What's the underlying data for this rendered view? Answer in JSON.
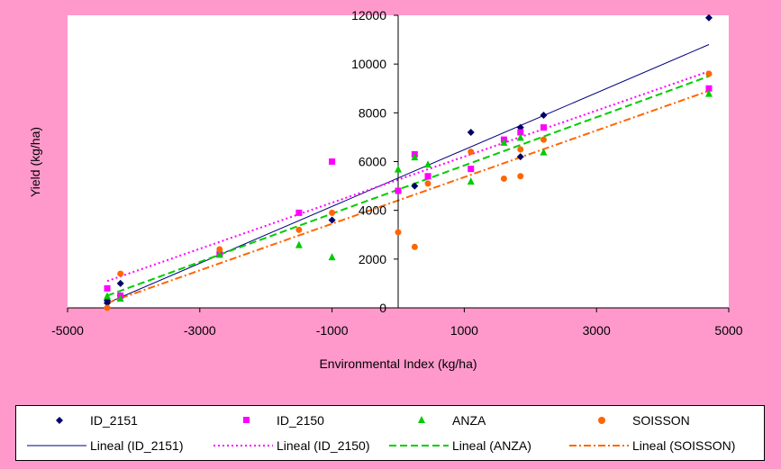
{
  "chart_data": {
    "type": "scatter",
    "title": "",
    "xlabel": "Environmental Index (kg/ha)",
    "ylabel": "Yield (kg/ha)",
    "xlim": [
      -5000,
      5000
    ],
    "ylim": [
      0,
      12000
    ],
    "xticks": [
      -5000,
      -3000,
      -1000,
      1000,
      3000,
      5000
    ],
    "yticks": [
      0,
      2000,
      4000,
      6000,
      8000,
      10000,
      12000
    ],
    "grid": false,
    "legend_position": "bottom",
    "series": [
      {
        "name": "ID_2151",
        "color": "#000066",
        "marker": "diamond",
        "x": [
          -4400,
          -4400,
          -4200,
          -4200,
          -1000,
          0,
          250,
          1100,
          1850,
          1850,
          2200,
          4700
        ],
        "y": [
          300,
          200,
          1000,
          500,
          3600,
          4800,
          5000,
          7200,
          7400,
          6200,
          7900,
          11900
        ]
      },
      {
        "name": "ID_2150",
        "color": "#ff00ff",
        "marker": "square",
        "x": [
          -4400,
          -4200,
          -2700,
          -1500,
          -1000,
          0,
          250,
          450,
          1100,
          1600,
          1850,
          2200,
          4700
        ],
        "y": [
          800,
          500,
          2200,
          3900,
          6000,
          4800,
          6300,
          5400,
          5700,
          6900,
          7200,
          7400,
          9000
        ]
      },
      {
        "name": "ANZA",
        "color": "#00cc00",
        "marker": "triangle",
        "x": [
          -4400,
          -4200,
          -2700,
          -1500,
          -1000,
          0,
          250,
          450,
          1100,
          1600,
          1850,
          2200,
          4700
        ],
        "y": [
          500,
          400,
          2200,
          2600,
          2100,
          5700,
          6200,
          5900,
          5200,
          6800,
          7000,
          6400,
          8800
        ]
      },
      {
        "name": "SOISSON",
        "color": "#ff6600",
        "marker": "circle",
        "x": [
          -4400,
          -4200,
          -2700,
          -1500,
          -1000,
          0,
          250,
          450,
          1100,
          1600,
          1850,
          1850,
          2200,
          4700
        ],
        "y": [
          0,
          1400,
          2400,
          3200,
          3900,
          3100,
          2500,
          5100,
          6400,
          5300,
          6500,
          5400,
          6900,
          9600
        ]
      }
    ],
    "trendlines": [
      {
        "name": "Lineal (ID_2151)",
        "series": "ID_2151",
        "color": "#000080",
        "style": "solid",
        "x": [
          -4400,
          4700
        ],
        "y": [
          200,
          10800
        ]
      },
      {
        "name": "Lineal (ID_2150)",
        "series": "ID_2150",
        "color": "#ff00ff",
        "style": "dot",
        "x": [
          -4400,
          4700
        ],
        "y": [
          1100,
          9700
        ]
      },
      {
        "name": "Lineal (ANZA)",
        "series": "ANZA",
        "color": "#00cc00",
        "style": "dash",
        "x": [
          -4400,
          4700
        ],
        "y": [
          500,
          9500
        ]
      },
      {
        "name": "Lineal (SOISSON)",
        "series": "SOISSON",
        "color": "#ff6600",
        "style": "dashdot",
        "x": [
          -4400,
          4700
        ],
        "y": [
          200,
          8900
        ]
      }
    ]
  }
}
